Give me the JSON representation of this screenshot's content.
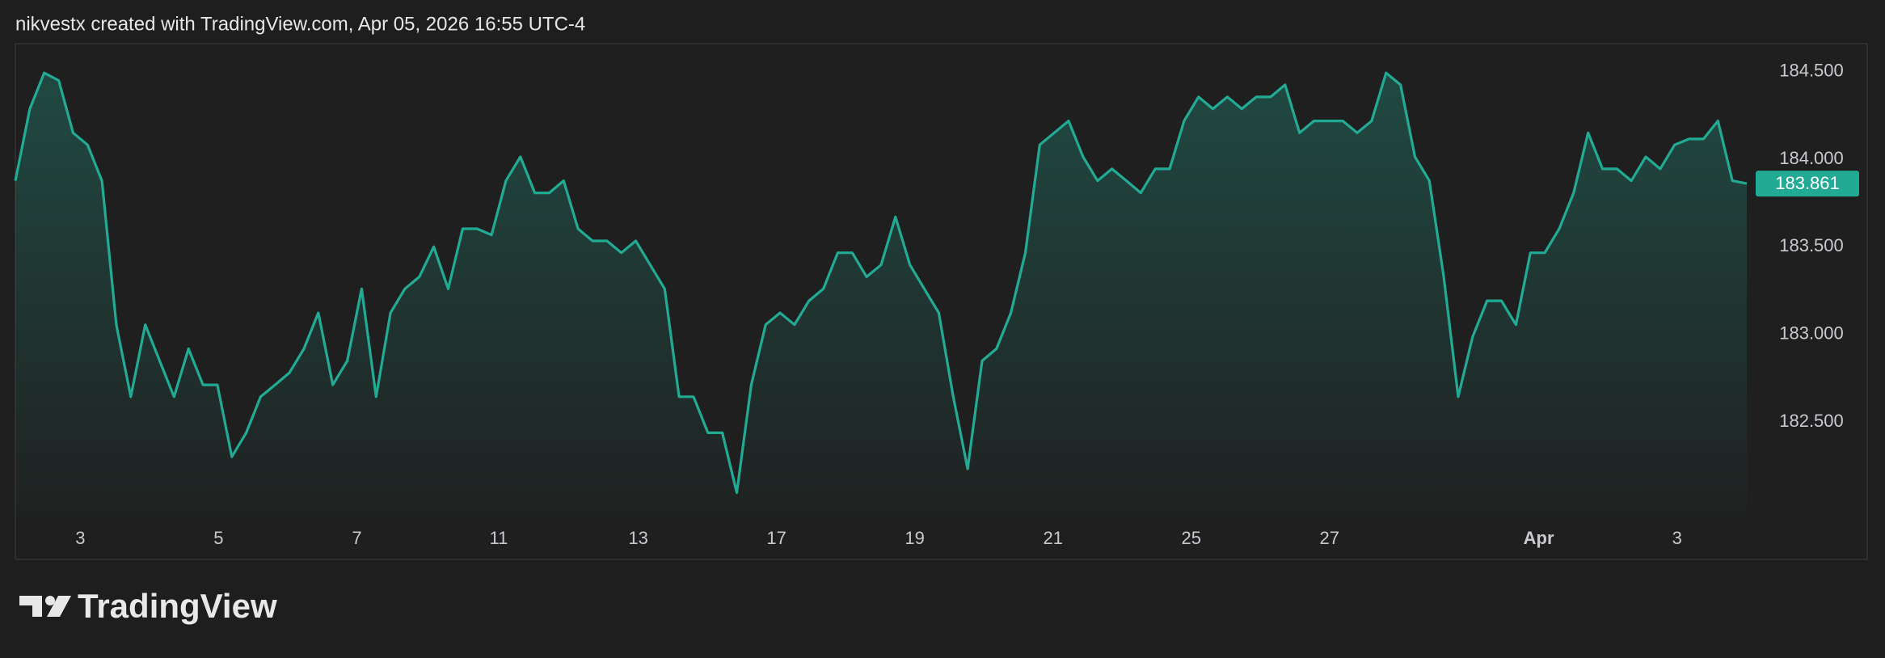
{
  "header": "nikvestx created with TradingView.com, Apr 05, 2026 16:55 UTC-4",
  "logo": "TradingView",
  "chart_data": {
    "type": "area",
    "color": "#22ab94",
    "values": [
      183.877,
      184.288,
      184.493,
      184.45,
      184.151,
      184.082,
      183.877,
      183.055,
      182.644,
      183.055,
      182.849,
      182.644,
      182.918,
      182.712,
      182.712,
      182.301,
      182.438,
      182.644,
      182.712,
      182.781,
      182.918,
      183.123,
      182.712,
      182.849,
      183.26,
      182.644,
      183.123,
      183.26,
      183.329,
      183.5,
      183.26,
      183.603,
      183.603,
      183.568,
      183.877,
      184.014,
      183.808,
      183.808,
      183.877,
      183.603,
      183.534,
      183.534,
      183.466,
      183.534,
      183.397,
      183.26,
      182.644,
      182.644,
      182.438,
      182.438,
      182.096,
      182.712,
      183.055,
      183.123,
      183.055,
      183.192,
      183.26,
      183.466,
      183.466,
      183.329,
      183.397,
      183.671,
      183.397,
      183.26,
      183.123,
      182.644,
      182.233,
      182.849,
      182.918,
      183.123,
      183.466,
      184.082,
      184.151,
      184.219,
      184.014,
      183.877,
      183.945,
      183.877,
      183.808,
      183.945,
      183.945,
      184.219,
      184.356,
      184.288,
      184.356,
      184.288,
      184.356,
      184.356,
      184.425,
      184.151,
      184.219,
      184.219,
      184.219,
      184.151,
      184.219,
      184.493,
      184.425,
      184.014,
      183.877,
      183.329,
      182.644,
      182.986,
      183.192,
      183.192,
      183.055,
      183.466,
      183.466,
      183.603,
      183.808,
      184.151,
      183.945,
      183.945,
      183.877,
      184.014,
      183.945,
      184.082,
      184.116,
      184.116,
      184.219,
      183.877,
      183.861
    ],
    "xlim": [
      0,
      120
    ],
    "xticks": [
      {
        "value": 4.5,
        "label": "3"
      },
      {
        "value": 14.08,
        "label": "5"
      },
      {
        "value": 23.67,
        "label": "7"
      },
      {
        "value": 33.5,
        "label": "11"
      },
      {
        "value": 43.17,
        "label": "13"
      },
      {
        "value": 52.75,
        "label": "17"
      },
      {
        "value": 62.33,
        "label": "19"
      },
      {
        "value": 71.92,
        "label": "21"
      },
      {
        "value": 81.5,
        "label": "25"
      },
      {
        "value": 91.08,
        "label": "27"
      },
      {
        "value": 105.58,
        "label": "Apr"
      },
      {
        "value": 115.17,
        "label": "3"
      }
    ],
    "ylim": [
      181.96,
      184.66
    ],
    "yticks": [
      {
        "value": 182.5,
        "label": "182.500"
      },
      {
        "value": 183,
        "label": "183.000"
      },
      {
        "value": 183.5,
        "label": "183.500"
      },
      {
        "value": 184,
        "label": "184.000"
      },
      {
        "value": 184.5,
        "label": "184.500"
      }
    ],
    "last_price": {
      "value": 183.861,
      "label": "183.861"
    }
  }
}
